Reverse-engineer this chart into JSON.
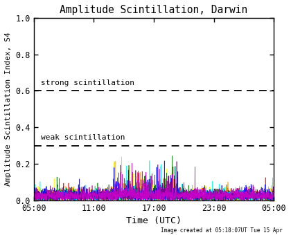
{
  "title": "Amplitude Scintillation, Darwin",
  "xlabel": "Time (UTC)",
  "ylabel": "Amplitude Scintillation Index, S4",
  "ylim": [
    0.0,
    1.0
  ],
  "yticks": [
    0.0,
    0.2,
    0.4,
    0.6,
    0.8,
    1.0
  ],
  "xtick_labels": [
    "05:00",
    "11:00",
    "17:00",
    "23:00",
    "05:00"
  ],
  "strong_threshold": 0.6,
  "weak_threshold": 0.3,
  "strong_label": "strong scintillation",
  "weak_label": "weak scintillation",
  "footer_text": "Image created at 05:18:07UT Tue 15 Apr",
  "background_color": "#ffffff",
  "num_points": 1440,
  "seed": 42,
  "figsize": [
    4.2,
    3.4
  ],
  "dpi": 100
}
